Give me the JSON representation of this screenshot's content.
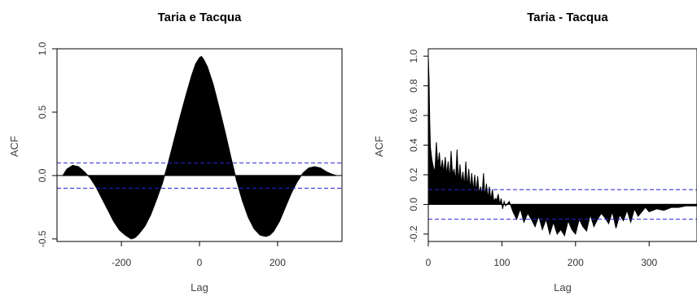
{
  "chart_data": [
    {
      "type": "area",
      "title": "Taria e Tacqua",
      "xlabel": "Lag",
      "ylabel": "ACF",
      "xlim": [
        -365,
        365
      ],
      "ylim": [
        -0.52,
        1.0
      ],
      "xticks": [
        -200,
        0,
        200
      ],
      "yticks": [
        -0.5,
        0.0,
        0.5,
        1.0
      ],
      "conf_band": [
        0.1,
        -0.1
      ],
      "series": [
        {
          "x": [
            -350,
            -340,
            -325,
            -310,
            -295,
            -280,
            -265,
            -250,
            -235,
            -220,
            -205,
            -190,
            -175,
            -165,
            -155,
            -140,
            -125,
            -110,
            -95,
            -80,
            -65,
            -50,
            -35,
            -20,
            -10,
            0,
            5,
            10,
            20,
            35,
            50,
            65,
            80,
            95,
            110,
            125,
            140,
            155,
            170,
            180,
            190,
            205,
            220,
            235,
            250,
            265,
            280,
            295,
            310,
            325,
            340,
            350
          ],
          "y": [
            0.0,
            0.05,
            0.08,
            0.07,
            0.03,
            -0.02,
            -0.09,
            -0.18,
            -0.27,
            -0.36,
            -0.43,
            -0.47,
            -0.5,
            -0.49,
            -0.46,
            -0.4,
            -0.31,
            -0.19,
            -0.06,
            0.1,
            0.28,
            0.46,
            0.63,
            0.79,
            0.88,
            0.93,
            0.94,
            0.92,
            0.86,
            0.72,
            0.54,
            0.35,
            0.15,
            -0.04,
            -0.2,
            -0.33,
            -0.42,
            -0.47,
            -0.48,
            -0.47,
            -0.44,
            -0.36,
            -0.25,
            -0.14,
            -0.05,
            0.02,
            0.06,
            0.07,
            0.06,
            0.03,
            0.01,
            0.0
          ]
        }
      ]
    },
    {
      "type": "area",
      "title": "Taria - Tacqua",
      "xlabel": "Lag",
      "ylabel": "ACF",
      "xlim": [
        0,
        365
      ],
      "ylim": [
        -0.25,
        1.05
      ],
      "xticks": [
        0,
        100,
        200,
        300
      ],
      "yticks": [
        -0.2,
        0.0,
        0.2,
        0.4,
        0.6,
        0.8,
        1.0
      ],
      "conf_band": [
        0.1,
        -0.1
      ],
      "series": [
        {
          "x": [
            0,
            1,
            2,
            3,
            5,
            7,
            9,
            11,
            13,
            15,
            17,
            19,
            21,
            23,
            25,
            27,
            29,
            31,
            33,
            35,
            37,
            39,
            41,
            43,
            45,
            47,
            49,
            51,
            53,
            55,
            57,
            59,
            61,
            63,
            65,
            67,
            69,
            71,
            73,
            75,
            77,
            79,
            81,
            83,
            85,
            87,
            89,
            91,
            93,
            95,
            97,
            99,
            101,
            103,
            105,
            110,
            115,
            120,
            125,
            130,
            135,
            140,
            145,
            150,
            155,
            160,
            165,
            170,
            175,
            180,
            185,
            190,
            195,
            200,
            205,
            210,
            215,
            220,
            225,
            230,
            235,
            240,
            245,
            250,
            255,
            260,
            265,
            270,
            275,
            280,
            285,
            290,
            295,
            300,
            310,
            320,
            330,
            340,
            350,
            360,
            365
          ],
          "y": [
            1.0,
            0.85,
            0.55,
            0.38,
            0.3,
            0.25,
            0.22,
            0.42,
            0.26,
            0.35,
            0.22,
            0.3,
            0.21,
            0.32,
            0.2,
            0.29,
            0.17,
            0.36,
            0.2,
            0.24,
            0.16,
            0.37,
            0.15,
            0.27,
            0.14,
            0.22,
            0.12,
            0.29,
            0.11,
            0.24,
            0.1,
            0.21,
            0.09,
            0.2,
            0.08,
            0.19,
            0.07,
            0.12,
            0.06,
            0.21,
            0.05,
            0.14,
            0.04,
            0.12,
            0.03,
            0.1,
            0.02,
            0.04,
            0.03,
            0.07,
            0.0,
            0.04,
            -0.03,
            0.02,
            -0.01,
            0.02,
            -0.05,
            -0.1,
            -0.03,
            -0.12,
            -0.06,
            -0.1,
            -0.15,
            -0.08,
            -0.17,
            -0.1,
            -0.2,
            -0.12,
            -0.2,
            -0.17,
            -0.21,
            -0.11,
            -0.17,
            -0.2,
            -0.1,
            -0.15,
            -0.18,
            -0.07,
            -0.15,
            -0.1,
            -0.06,
            -0.09,
            -0.13,
            -0.05,
            -0.16,
            -0.07,
            -0.11,
            -0.04,
            -0.12,
            -0.03,
            -0.08,
            -0.05,
            -0.02,
            -0.05,
            -0.03,
            -0.04,
            -0.02,
            -0.02,
            -0.01,
            -0.01,
            -0.01
          ]
        }
      ]
    }
  ]
}
